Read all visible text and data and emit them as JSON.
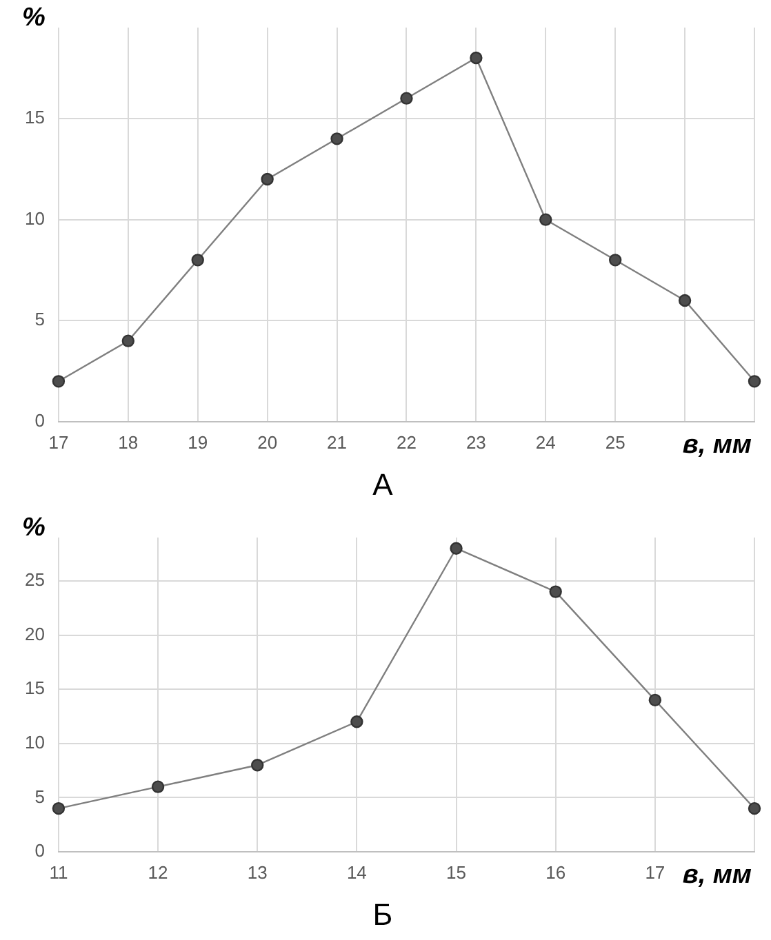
{
  "chart_data": [
    {
      "type": "line",
      "title": "А",
      "xlabel": "в, мм",
      "ylabel": "%",
      "categories": [
        "17",
        "18",
        "19",
        "20",
        "21",
        "22",
        "23",
        "24",
        "25",
        null,
        null
      ],
      "series": [
        {
          "color": "#7f7f7f",
          "values": [
            2,
            4,
            8,
            12,
            14,
            16,
            18,
            10,
            8,
            6,
            2
          ]
        }
      ],
      "ylim": [
        0,
        19.5
      ],
      "yticks": [
        0,
        5,
        10,
        15
      ],
      "grid": true,
      "legend": false,
      "marker": "circle",
      "line_style": "solid"
    },
    {
      "type": "line",
      "title": "Б",
      "xlabel": "в, мм",
      "ylabel": "%",
      "categories": [
        "11",
        "12",
        "13",
        "14",
        "15",
        "16",
        "17",
        null
      ],
      "series": [
        {
          "color": "#7f7f7f",
          "values": [
            4,
            6,
            8,
            12,
            28,
            24,
            14,
            4
          ]
        }
      ],
      "ylim": [
        0,
        29
      ],
      "yticks": [
        0,
        5,
        10,
        15,
        20,
        25
      ],
      "grid": true,
      "legend": false,
      "marker": "circle",
      "line_style": "solid"
    }
  ]
}
